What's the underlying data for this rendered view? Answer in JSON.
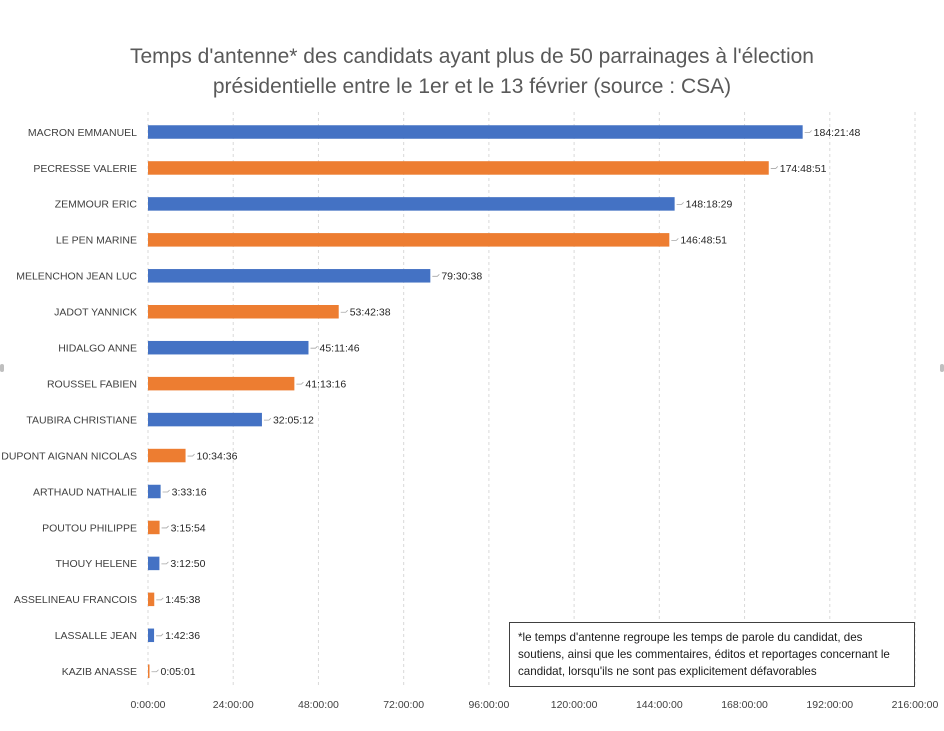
{
  "chart_data": {
    "type": "bar",
    "orientation": "horizontal",
    "title": "Temps d'antenne* des candidats ayant plus de 50 parrainages à l'élection présidentielle entre le 1er et le 13 février (source : CSA)",
    "title_lines": [
      "Temps d'antenne* des candidats ayant plus de 50 parrainages à l'élection",
      "présidentielle entre le 1er et le 13 février (source : CSA)"
    ],
    "xlabel": "",
    "ylabel": "",
    "x_unit": "hours",
    "xlim": [
      0,
      216
    ],
    "x_ticks": [
      0,
      24,
      48,
      72,
      96,
      120,
      144,
      168,
      192,
      216
    ],
    "x_tick_labels": [
      "0:00:00",
      "24:00:00",
      "48:00:00",
      "72:00:00",
      "96:00:00",
      "120:00:00",
      "144:00:00",
      "168:00:00",
      "192:00:00",
      "216:00:00"
    ],
    "grid": true,
    "categories": [
      "MACRON EMMANUEL",
      "PECRESSE VALERIE",
      "ZEMMOUR ERIC",
      "LE PEN MARINE",
      "MELENCHON JEAN LUC",
      "JADOT YANNICK",
      "HIDALGO ANNE",
      "ROUSSEL FABIEN",
      "TAUBIRA CHRISTIANE",
      "DUPONT AIGNAN NICOLAS",
      "ARTHAUD NATHALIE",
      "POUTOU PHILIPPE",
      "THOUY HELENE",
      "ASSELINEAU FRANCOIS",
      "LASSALLE JEAN",
      "KAZIB ANASSE"
    ],
    "value_labels": [
      "184:21:48",
      "174:48:51",
      "148:18:29",
      "146:48:51",
      "79:30:38",
      "53:42:38",
      "45:11:46",
      "41:13:16",
      "32:05:12",
      "10:34:36",
      "3:33:16",
      "3:15:54",
      "3:12:50",
      "1:45:38",
      "1:42:36",
      "0:05:01"
    ],
    "values_hours": [
      184.3633,
      174.8142,
      148.3081,
      146.8142,
      79.5106,
      53.7106,
      45.1961,
      41.2211,
      32.0867,
      10.5767,
      3.5544,
      3.265,
      3.2139,
      1.7606,
      1.71,
      0.0836
    ],
    "bar_colors": [
      "#4472c4",
      "#ed7d31",
      "#4472c4",
      "#ed7d31",
      "#4472c4",
      "#ed7d31",
      "#4472c4",
      "#ed7d31",
      "#4472c4",
      "#ed7d31",
      "#4472c4",
      "#ed7d31",
      "#4472c4",
      "#ed7d31",
      "#4472c4",
      "#ed7d31"
    ],
    "annotation": "*le temps d'antenne regroupe les temps de parole du candidat, des soutiens, ainsi que les commentaires, éditos et reportages concernant le candidat, lorsqu'ils ne sont pas explicitement défavorables"
  }
}
